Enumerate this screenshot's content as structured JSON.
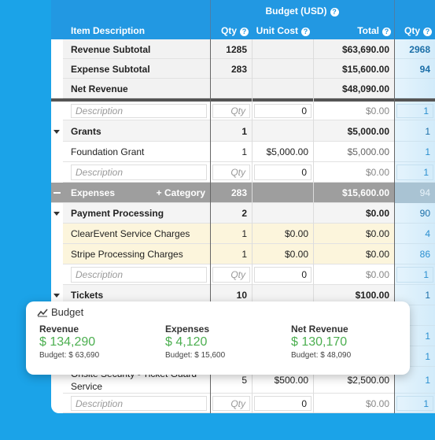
{
  "header": {
    "group": "Budget (USD)",
    "columns": [
      "Item Description",
      "Qty",
      "Unit Cost",
      "Total",
      "Qty"
    ]
  },
  "rows": [
    {
      "description": "Revenue Subtotal",
      "qty": 1285,
      "unit_cost": null,
      "total": "$63,690.00",
      "qty2": 2968
    },
    {
      "description": "Expense Subtotal",
      "qty": 283,
      "unit_cost": null,
      "total": "$15,600.00",
      "qty2": 94
    },
    {
      "description": "Net Revenue",
      "qty": null,
      "unit_cost": null,
      "total": "$48,090.00",
      "qty2": null
    },
    {
      "description": "Description",
      "qty": "Qty",
      "unit_cost": 0,
      "total": "$0.00",
      "qty2": 1
    },
    {
      "description": "Grants",
      "qty": 1,
      "unit_cost": null,
      "total": "$5,000.00",
      "qty2": 1
    },
    {
      "description": "Foundation Grant",
      "qty": 1,
      "unit_cost": "$5,000.00",
      "total": "$5,000.00",
      "qty2": 1
    },
    {
      "description": "Description",
      "qty": "Qty",
      "unit_cost": 0,
      "total": "$0.00",
      "qty2": 1
    },
    {
      "description": "Expenses",
      "action": "+ Category",
      "qty": 283,
      "unit_cost": null,
      "total": "$15,600.00",
      "qty2": 94
    },
    {
      "description": "Payment Processing",
      "qty": 2,
      "unit_cost": null,
      "total": "$0.00",
      "qty2": 90
    },
    {
      "description": "ClearEvent Service Charges",
      "qty": 1,
      "unit_cost": "$0.00",
      "total": "$0.00",
      "qty2": 4
    },
    {
      "description": "Stripe Processing Charges",
      "qty": 1,
      "unit_cost": "$0.00",
      "total": "$0.00",
      "qty2": 86
    },
    {
      "description": "Description",
      "qty": "Qty",
      "unit_cost": 0,
      "total": "$0.00",
      "qty2": 1
    },
    {
      "description": "Tickets",
      "qty": 10,
      "unit_cost": null,
      "total": "$100.00",
      "qty2": 1
    },
    {
      "description": null,
      "qty": null,
      "unit_cost": null,
      "total": null,
      "qty2": null
    },
    {
      "description": null,
      "qty": null,
      "unit_cost": null,
      "total": null,
      "qty2": 1
    },
    {
      "description": null,
      "qty": null,
      "unit_cost": null,
      "total": null,
      "qty2": 1
    },
    {
      "description": "Onsite Security - Ticket Guard Service",
      "qty": 5,
      "unit_cost": "$500.00",
      "total": "$2,500.00",
      "qty2": 1
    },
    {
      "description": "Description",
      "qty": "Qty",
      "unit_cost": 0,
      "total": "$0.00",
      "qty2": 1
    }
  ],
  "card": {
    "title": "Budget",
    "metrics": [
      {
        "label": "Revenue",
        "value": "$ 134,290",
        "budget": "Budget: $ 63,690"
      },
      {
        "label": "Expenses",
        "value": "$ 4,120",
        "budget": "Budget: $ 15,600"
      },
      {
        "label": "Net Revenue",
        "value": "$ 130,170",
        "budget": "Budget: $ 48,090"
      }
    ]
  }
}
